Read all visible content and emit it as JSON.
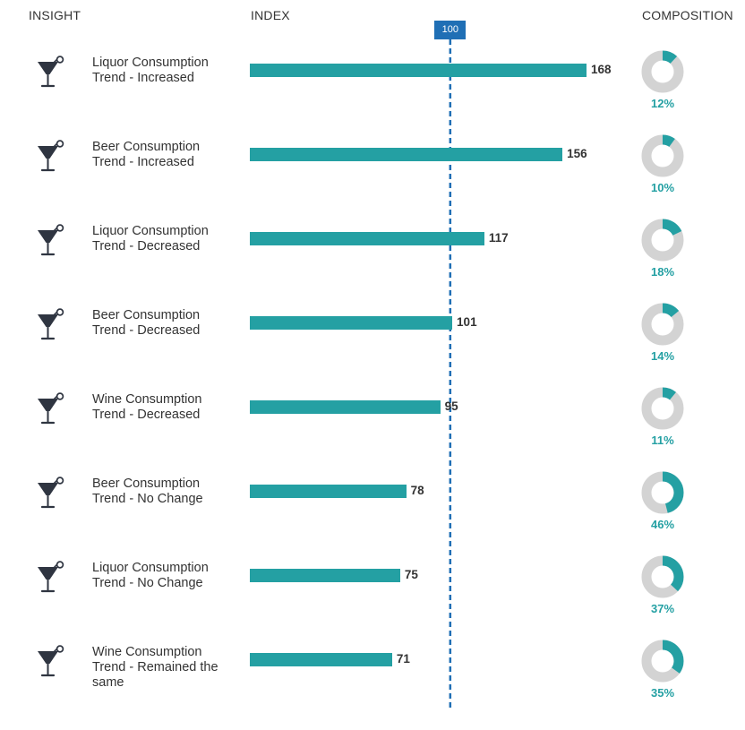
{
  "headers": {
    "insight": "INSIGHT",
    "index": "INDEX",
    "composition": "COMPOSITION"
  },
  "reference": {
    "value": 100,
    "label": "100"
  },
  "colors": {
    "bar": "#24a0a3",
    "donut_track": "#d3d3d3",
    "reference": "#1f6fb5",
    "icon": "#2f3541"
  },
  "icon_name": "cocktail-glass-icon",
  "chart_data": {
    "type": "bar",
    "orientation": "horizontal",
    "xlabel": "INDEX",
    "xlim": [
      0,
      168
    ],
    "reference_line": 100,
    "categories": [
      [
        "Liquor Consumption",
        "Trend - Increased"
      ],
      [
        "Beer Consumption",
        "Trend - Increased"
      ],
      [
        "Liquor Consumption",
        "Trend - Decreased"
      ],
      [
        "Beer Consumption",
        "Trend - Decreased"
      ],
      [
        "Wine Consumption",
        "Trend - Decreased"
      ],
      [
        "Beer Consumption",
        "Trend - No Change"
      ],
      [
        "Liquor Consumption",
        "Trend - No Change"
      ],
      [
        "Wine Consumption",
        "Trend - Remained the",
        "same"
      ]
    ],
    "values": [
      168,
      156,
      117,
      101,
      95,
      78,
      75,
      71
    ],
    "composition": [
      12,
      10,
      18,
      14,
      11,
      46,
      37,
      35
    ],
    "composition_labels": [
      "12%",
      "10%",
      "18%",
      "14%",
      "11%",
      "46%",
      "37%",
      "35%"
    ]
  }
}
